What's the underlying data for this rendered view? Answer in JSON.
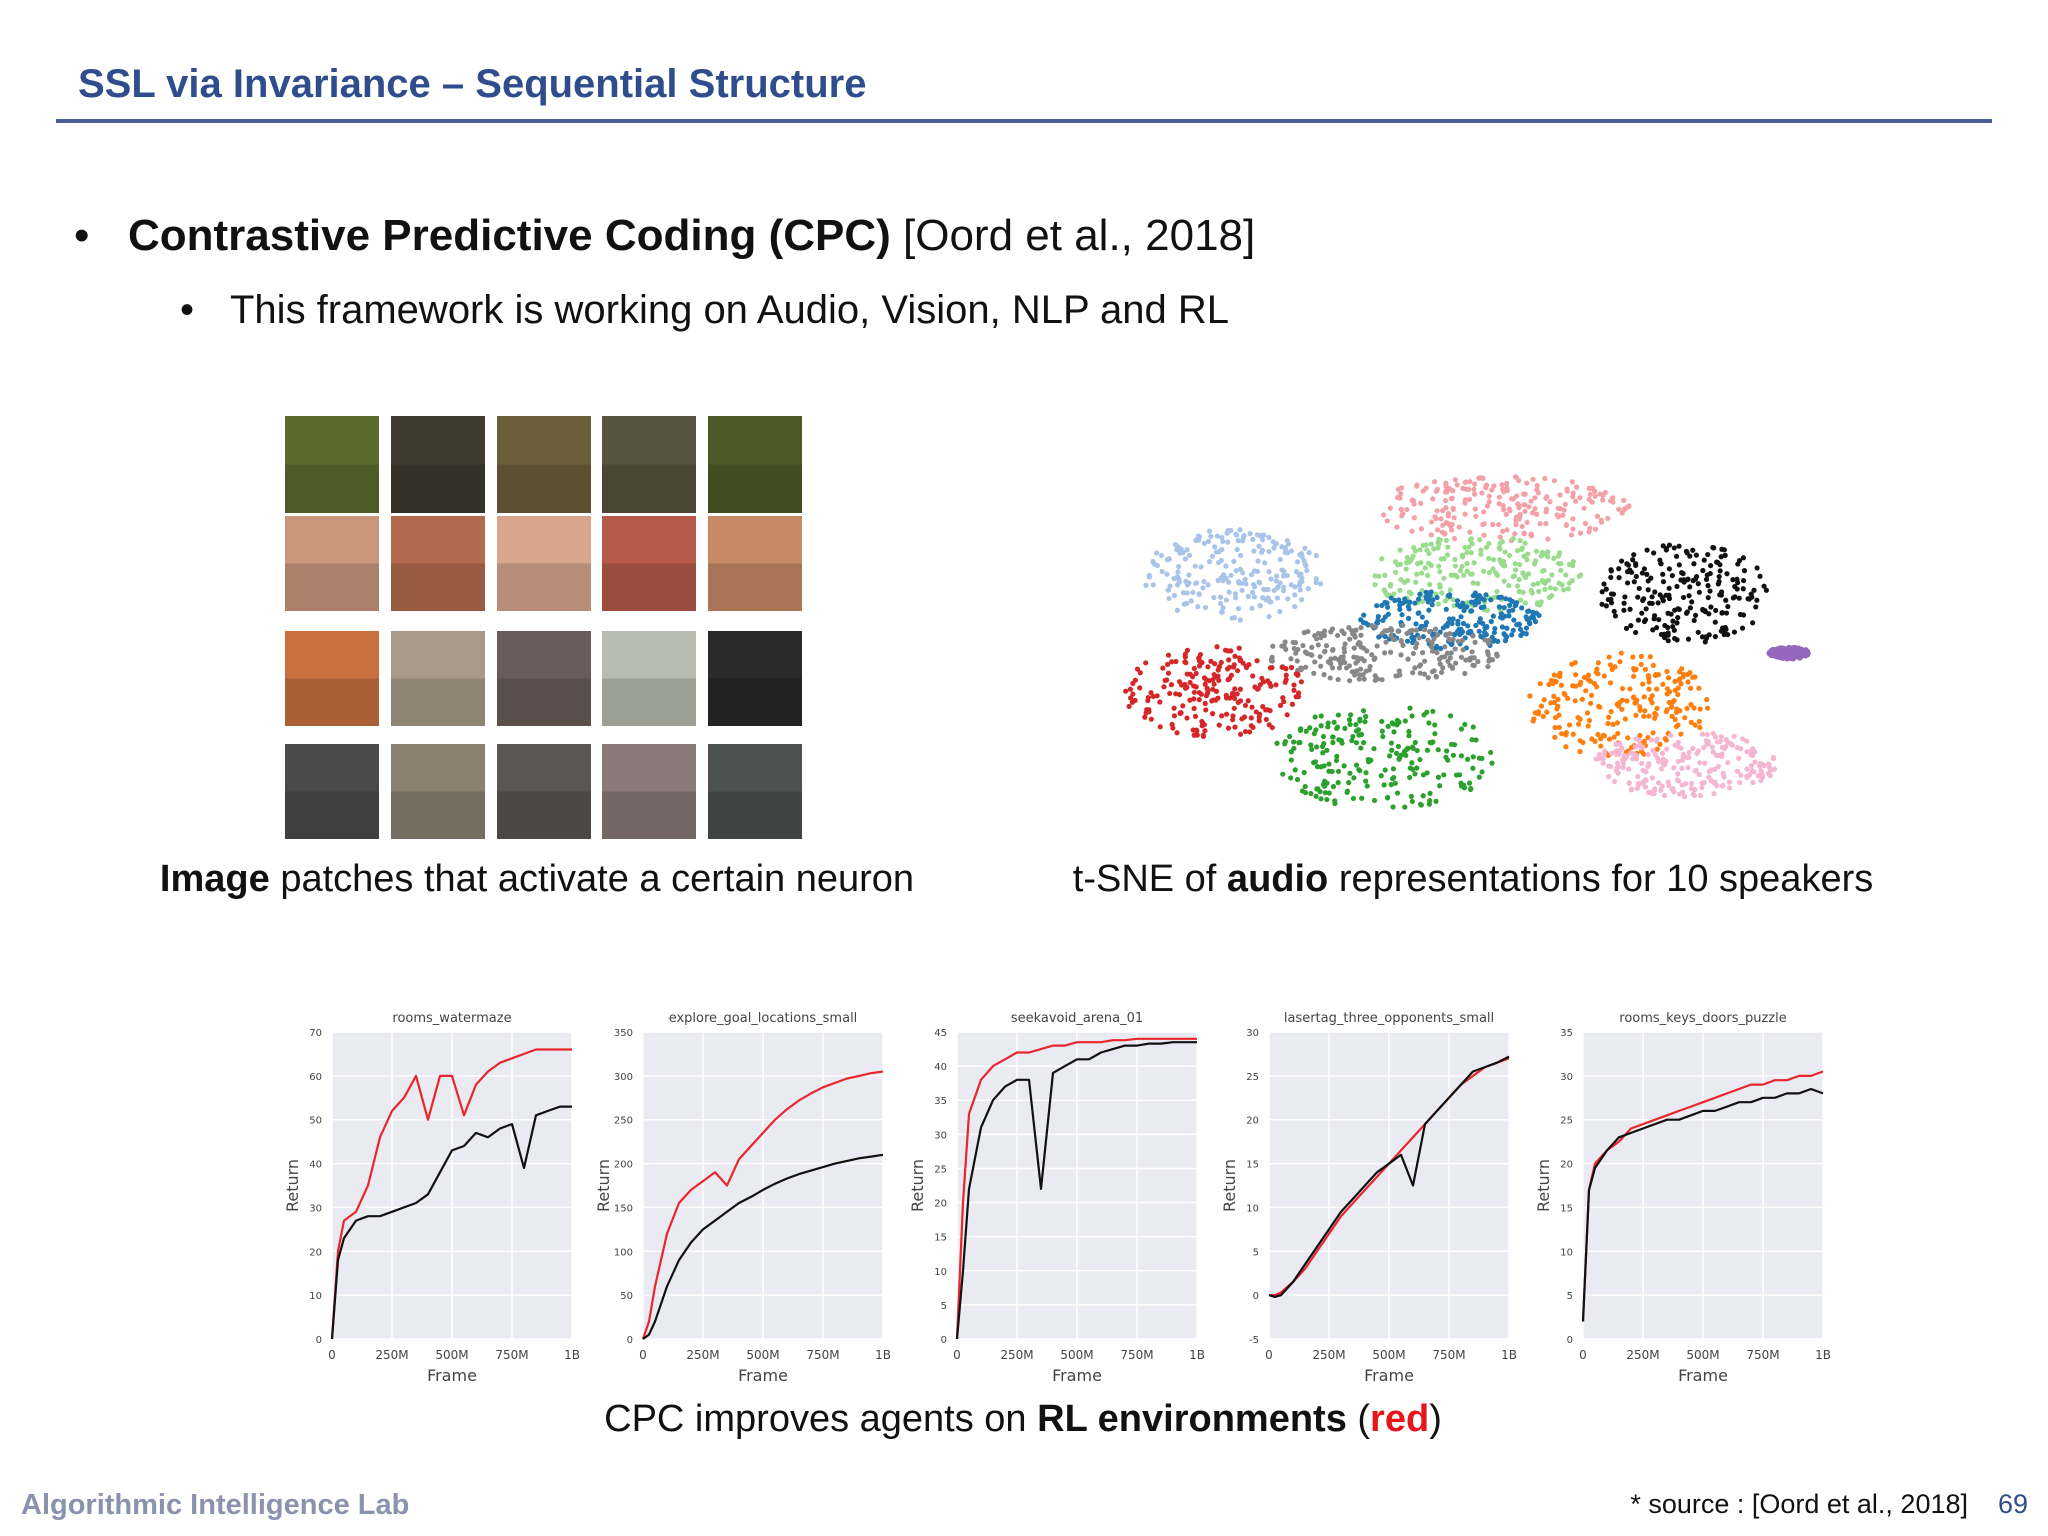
{
  "header": {
    "title": "SSL via Invariance – Sequential Structure"
  },
  "bullet_1": {
    "bold": "Contrastive Predictive Coding (CPC)",
    "rest": "[Oord et al., 2018]"
  },
  "bullet_2": "This framework is working on Audio, Vision, NLP and RL",
  "image_caption": {
    "bold": "Image",
    "rest": "patches that activate a certain neuron"
  },
  "audio_caption": {
    "before": "t-SNE of",
    "bold": "audio",
    "after": "representations for 10 speakers"
  },
  "rl_caption": {
    "before": "CPC improves agents on",
    "bold": "RL environments",
    "open": "(",
    "red": "red",
    "close": ")"
  },
  "footer": {
    "lab": "Algorithmic Intelligence Lab",
    "source": "* source : [Oord et al., 2018]",
    "page": 69
  },
  "charts": [
    {
      "type": "line",
      "title": "rooms_watermaze",
      "xlabel": "Frame",
      "ylabel": "Return",
      "xlim": [
        0,
        1000
      ],
      "xticks": [
        0,
        {
          "value": 250,
          "label": "250M"
        },
        {
          "value": 500,
          "label": "500M"
        },
        {
          "value": 750,
          "label": "750M"
        },
        {
          "value": 1000,
          "label": "1B"
        }
      ],
      "ylim": [
        0,
        70
      ],
      "yticks": [
        0,
        10,
        20,
        30,
        40,
        50,
        60,
        70
      ],
      "grid": true,
      "x": [
        0,
        25,
        50,
        100,
        150,
        200,
        250,
        300,
        350,
        400,
        450,
        500,
        550,
        600,
        650,
        700,
        750,
        800,
        850,
        900,
        950,
        1000
      ],
      "series": [
        {
          "color": "#e8262b",
          "values": [
            0,
            20,
            27,
            29,
            35,
            46,
            52,
            55,
            60,
            50,
            60,
            60,
            51,
            58,
            61,
            63,
            64,
            65,
            66,
            66,
            66,
            66
          ]
        },
        {
          "color": "#111111",
          "values": [
            0,
            18,
            23,
            27,
            28,
            28,
            29,
            30,
            31,
            33,
            38,
            43,
            44,
            47,
            46,
            48,
            49,
            39,
            51,
            52,
            53,
            53
          ]
        }
      ]
    },
    {
      "type": "line",
      "title": "explore_goal_locations_small",
      "xlabel": "Frame",
      "ylabel": "Return",
      "xlim": [
        0,
        1000
      ],
      "xticks": [
        0,
        {
          "value": 250,
          "label": "250M"
        },
        {
          "value": 500,
          "label": "500M"
        },
        {
          "value": 750,
          "label": "750M"
        },
        {
          "value": 1000,
          "label": "1B"
        }
      ],
      "ylim": [
        0,
        350
      ],
      "yticks": [
        0,
        50,
        100,
        150,
        200,
        250,
        300,
        350
      ],
      "grid": true,
      "x": [
        0,
        25,
        50,
        100,
        150,
        200,
        250,
        300,
        350,
        400,
        450,
        500,
        550,
        600,
        650,
        700,
        750,
        800,
        850,
        900,
        950,
        1000
      ],
      "series": [
        {
          "color": "#e8262b",
          "values": [
            0,
            20,
            60,
            120,
            155,
            170,
            180,
            190,
            175,
            205,
            220,
            235,
            250,
            262,
            272,
            280,
            287,
            292,
            297,
            300,
            303,
            305
          ]
        },
        {
          "color": "#111111",
          "values": [
            0,
            5,
            20,
            60,
            90,
            110,
            125,
            135,
            145,
            155,
            162,
            170,
            177,
            183,
            188,
            192,
            196,
            200,
            203,
            206,
            208,
            210
          ]
        }
      ]
    },
    {
      "type": "line",
      "title": "seekavoid_arena_01",
      "xlabel": "Frame",
      "ylabel": "Return",
      "xlim": [
        0,
        1000
      ],
      "xticks": [
        0,
        {
          "value": 250,
          "label": "250M"
        },
        {
          "value": 500,
          "label": "500M"
        },
        {
          "value": 750,
          "label": "750M"
        },
        {
          "value": 1000,
          "label": "1B"
        }
      ],
      "ylim": [
        0,
        45
      ],
      "yticks": [
        0,
        5,
        10,
        15,
        20,
        25,
        30,
        35,
        40,
        45
      ],
      "grid": true,
      "x": [
        0,
        25,
        50,
        100,
        150,
        200,
        250,
        300,
        350,
        400,
        450,
        500,
        550,
        600,
        650,
        700,
        750,
        800,
        850,
        900,
        950,
        1000
      ],
      "series": [
        {
          "color": "#e8262b",
          "values": [
            0,
            20,
            33,
            38,
            40,
            41,
            42,
            42,
            42.5,
            43,
            43,
            43.5,
            43.5,
            43.5,
            43.8,
            43.8,
            44,
            44,
            44,
            44,
            44,
            44
          ]
        },
        {
          "color": "#111111",
          "values": [
            0,
            10,
            22,
            31,
            35,
            37,
            38,
            38,
            22,
            39,
            40,
            41,
            41,
            42,
            42.5,
            43,
            43,
            43.3,
            43.3,
            43.5,
            43.5,
            43.5
          ]
        }
      ]
    },
    {
      "type": "line",
      "title": "lasertag_three_opponents_small",
      "xlabel": "Frame",
      "ylabel": "Return",
      "xlim": [
        0,
        1000
      ],
      "xticks": [
        0,
        {
          "value": 250,
          "label": "250M"
        },
        {
          "value": 500,
          "label": "500M"
        },
        {
          "value": 750,
          "label": "750M"
        },
        {
          "value": 1000,
          "label": "1B"
        }
      ],
      "ylim": [
        -5,
        30
      ],
      "yticks": [
        -5,
        0,
        5,
        10,
        15,
        20,
        25,
        30
      ],
      "grid": true,
      "x": [
        0,
        25,
        50,
        100,
        150,
        200,
        250,
        300,
        350,
        400,
        450,
        500,
        550,
        600,
        650,
        700,
        750,
        800,
        850,
        900,
        950,
        1000
      ],
      "series": [
        {
          "color": "#e8262b",
          "values": [
            0,
            0,
            0.3,
            1.5,
            3,
            5,
            7,
            9,
            10.5,
            12,
            13.5,
            15,
            16.5,
            18,
            19.5,
            21,
            22.5,
            24,
            25,
            26,
            26.5,
            27
          ]
        },
        {
          "color": "#111111",
          "values": [
            0,
            -0.2,
            0,
            1.5,
            3.5,
            5.5,
            7.5,
            9.5,
            11,
            12.5,
            14,
            15,
            16,
            12.5,
            19.5,
            21,
            22.5,
            24,
            25.5,
            26,
            26.5,
            27.2
          ]
        }
      ]
    },
    {
      "type": "line",
      "title": "rooms_keys_doors_puzzle",
      "xlabel": "Frame",
      "ylabel": "Return",
      "xlim": [
        0,
        1000
      ],
      "xticks": [
        0,
        {
          "value": 250,
          "label": "250M"
        },
        {
          "value": 500,
          "label": "500M"
        },
        {
          "value": 750,
          "label": "750M"
        },
        {
          "value": 1000,
          "label": "1B"
        }
      ],
      "ylim": [
        0,
        35
      ],
      "yticks": [
        0,
        5,
        10,
        15,
        20,
        25,
        30,
        35
      ],
      "grid": true,
      "x": [
        0,
        25,
        50,
        100,
        150,
        200,
        250,
        300,
        350,
        400,
        450,
        500,
        550,
        600,
        650,
        700,
        750,
        800,
        850,
        900,
        950,
        1000
      ],
      "series": [
        {
          "color": "#e8262b",
          "values": [
            2,
            17,
            20,
            21.5,
            22.5,
            24,
            24.5,
            25,
            25.5,
            26,
            26.5,
            27,
            27.5,
            28,
            28.5,
            29,
            29,
            29.5,
            29.5,
            30,
            30,
            30.5
          ]
        },
        {
          "color": "#111111",
          "values": [
            2,
            17,
            19.5,
            21.5,
            23,
            23.5,
            24,
            24.5,
            25,
            25,
            25.5,
            26,
            26,
            26.5,
            27,
            27,
            27.5,
            27.5,
            28,
            28,
            28.5,
            28
          ]
        }
      ]
    }
  ]
}
